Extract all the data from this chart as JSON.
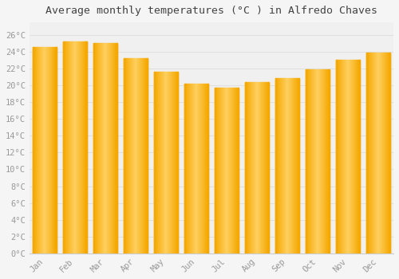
{
  "months": [
    "Jan",
    "Feb",
    "Mar",
    "Apr",
    "May",
    "Jun",
    "Jul",
    "Aug",
    "Sep",
    "Oct",
    "Nov",
    "Dec"
  ],
  "temperatures": [
    24.6,
    25.2,
    25.0,
    23.2,
    21.6,
    20.2,
    19.7,
    20.4,
    20.9,
    21.9,
    23.0,
    23.9
  ],
  "bar_color_center": "#FFD060",
  "bar_color_edge": "#F5A800",
  "title": "Average monthly temperatures (°C ) in Alfredo Chaves",
  "title_fontsize": 9.5,
  "yticks": [
    0,
    2,
    4,
    6,
    8,
    10,
    12,
    14,
    16,
    18,
    20,
    22,
    24,
    26
  ],
  "ylim": [
    0,
    27.5
  ],
  "background_color": "#f5f5f5",
  "plot_bg_color": "#f0f0f0",
  "grid_color": "#e0e0e0",
  "tick_label_color": "#999999",
  "title_color": "#444444",
  "font_family": "monospace",
  "bar_width": 0.78
}
